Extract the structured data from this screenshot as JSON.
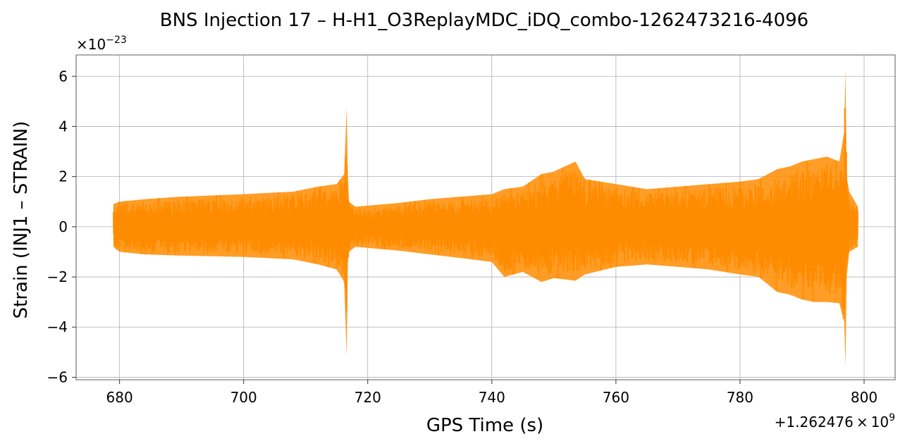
{
  "chart_data": {
    "type": "line",
    "title": "BNS Injection 17 – H-H1_O3ReplayMDC_iDQ_combo-1262473216-4096",
    "xlabel": "GPS Time (s)",
    "ylabel": "Strain (INJ1 – STRAIN)",
    "x_offset_label": "+1.262476",
    "x_offset_exponent": "9",
    "y_scale_label": "×10",
    "y_scale_exponent": "−23",
    "xlim": [
      673,
      805
    ],
    "ylim": [
      -6.1,
      6.85
    ],
    "xticks": [
      680,
      700,
      720,
      740,
      760,
      780,
      800
    ],
    "xtick_labels": [
      "680",
      "700",
      "720",
      "740",
      "760",
      "780",
      "800"
    ],
    "yticks": [
      -6,
      -4,
      -2,
      0,
      2,
      4,
      6
    ],
    "ytick_labels": [
      "−6",
      "−4",
      "−2",
      "0",
      "2",
      "4",
      "6"
    ],
    "grid": true,
    "series": [
      {
        "color": "#ff8c00",
        "x": [
          679.0,
          680.0,
          684.0,
          690.0,
          700.0,
          708.0,
          712.0,
          715.0,
          716.2,
          716.6,
          716.8,
          717.0,
          718.0,
          725.0,
          730.0,
          735.0,
          740.0,
          742.0,
          745.0,
          748.0,
          750.0,
          753.5,
          755.0,
          760.0,
          765.0,
          770.0,
          775.0,
          780.0,
          783.0,
          786.0,
          788.0,
          790.0,
          792.0,
          794.0,
          796.0,
          796.8,
          797.0,
          797.2,
          797.6,
          799.0
        ],
        "y_max": [
          0.9,
          1.0,
          1.1,
          1.2,
          1.3,
          1.4,
          1.6,
          1.7,
          2.1,
          4.75,
          2.0,
          1.0,
          0.8,
          0.95,
          1.1,
          1.2,
          1.3,
          1.5,
          1.6,
          2.1,
          2.2,
          2.6,
          1.9,
          1.7,
          1.5,
          1.6,
          1.7,
          1.8,
          1.9,
          2.3,
          2.4,
          2.6,
          2.7,
          2.8,
          2.6,
          3.8,
          6.25,
          2.0,
          1.4,
          0.8
        ],
        "y_min": [
          -0.8,
          -1.0,
          -1.1,
          -1.15,
          -1.2,
          -1.3,
          -1.5,
          -1.7,
          -2.2,
          -5.15,
          -1.4,
          -1.0,
          -0.8,
          -0.95,
          -1.1,
          -1.25,
          -1.4,
          -2.0,
          -1.8,
          -2.2,
          -2.05,
          -2.15,
          -1.9,
          -1.6,
          -1.5,
          -1.6,
          -1.7,
          -1.9,
          -2.0,
          -2.6,
          -2.7,
          -2.9,
          -3.0,
          -3.0,
          -3.05,
          -3.8,
          -5.55,
          -2.0,
          -1.0,
          -0.8
        ]
      }
    ]
  }
}
